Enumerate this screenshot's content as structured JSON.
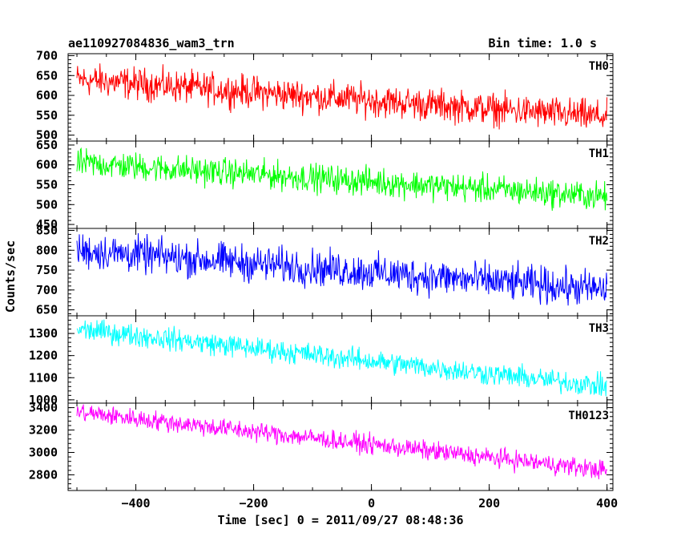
{
  "header": {
    "left_title": "ae110927084836_wam3_trn",
    "right_title": "Bin time: 1.0 s"
  },
  "chart_data": {
    "type": "line",
    "xlabel": "Time [sec] 0 = 2011/09/27 08:48:36",
    "ylabel": "Counts/sec",
    "xlim": [
      -515,
      410
    ],
    "x_ticks": [
      -400,
      -200,
      0,
      200,
      400
    ],
    "x_tick_labels": [
      "−400",
      "−200",
      "0",
      "200",
      "400"
    ],
    "time_range": [
      -500,
      400
    ],
    "panels": [
      {
        "name": "TH0",
        "color": "#ff0000",
        "ylim": [
          485,
          705
        ],
        "yticks": [
          500,
          550,
          600,
          650,
          700
        ],
        "trend_start": 640,
        "trend_end": 545,
        "noise_amplitude": 40
      },
      {
        "name": "TH1",
        "color": "#00ff00",
        "ylim": [
          440,
          660
        ],
        "yticks": [
          450,
          500,
          550,
          600,
          650
        ],
        "trend_start": 605,
        "trend_end": 520,
        "noise_amplitude": 35
      },
      {
        "name": "TH2",
        "color": "#0000ff",
        "ylim": [
          635,
          855
        ],
        "yticks": [
          650,
          700,
          750,
          800,
          850
        ],
        "trend_start": 800,
        "trend_end": 700,
        "noise_amplitude": 45
      },
      {
        "name": "TH3",
        "color": "#00ffff",
        "ylim": [
          985,
          1380
        ],
        "yticks": [
          1000,
          1100,
          1200,
          1300
        ],
        "trend_start": 1320,
        "trend_end": 1060,
        "noise_amplitude": 50
      },
      {
        "name": "TH0123",
        "color": "#ff00ff",
        "ylim": [
          2660,
          3440
        ],
        "yticks": [
          2800,
          3000,
          3200,
          3400
        ],
        "trend_start": 3360,
        "trend_end": 2840,
        "noise_amplitude": 85
      }
    ]
  }
}
